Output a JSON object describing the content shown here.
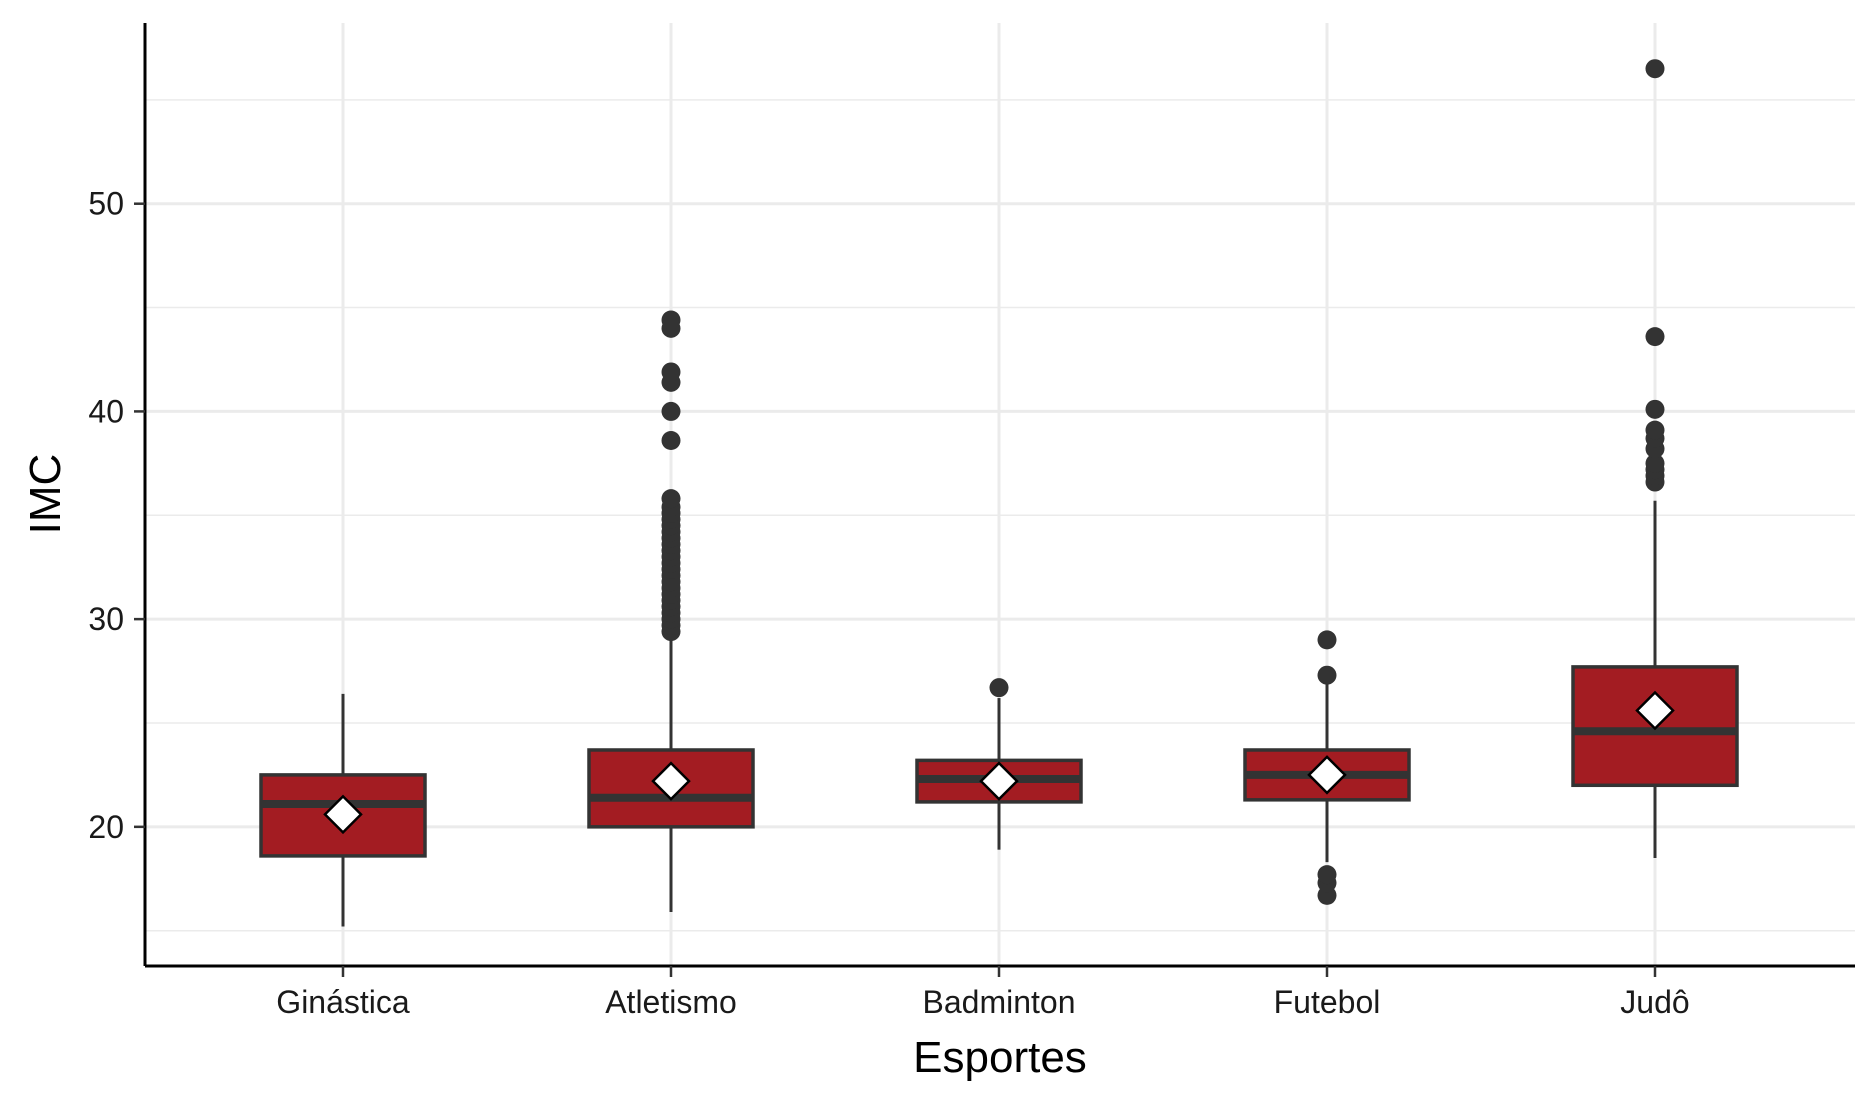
{
  "chart_data": {
    "type": "boxplot",
    "xlabel": "Esportes",
    "ylabel": "IMC",
    "ylim": [
      13.3,
      58.7
    ],
    "yticks": [
      20,
      30,
      40,
      50
    ],
    "grid": true,
    "legend": "none",
    "colors": {
      "box_fill": "#a31c22",
      "box_stroke": "#333333",
      "mean_marker": "#ffffff",
      "grid": "#ebebeb"
    },
    "categories": [
      "Ginástica",
      "Atletismo",
      "Badminton",
      "Futebol",
      "Judô"
    ],
    "boxes": [
      {
        "category": "Ginástica",
        "whisker_low": 15.2,
        "q1": 18.6,
        "median": 21.1,
        "q3": 22.5,
        "whisker_high": 26.4,
        "mean": 20.6,
        "outliers": []
      },
      {
        "category": "Atletismo",
        "whisker_low": 15.9,
        "q1": 20.0,
        "median": 21.4,
        "q3": 23.7,
        "whisker_high": 29.2,
        "mean": 22.2,
        "outliers": [
          29.4,
          29.7,
          30.0,
          30.3,
          30.6,
          30.9,
          31.2,
          31.5,
          31.8,
          32.1,
          32.4,
          32.7,
          33.0,
          33.3,
          33.6,
          33.9,
          34.2,
          34.5,
          34.8,
          35.1,
          35.4,
          35.8,
          38.6,
          40.0,
          41.4,
          41.9,
          44.0,
          44.4
        ]
      },
      {
        "category": "Badminton",
        "whisker_low": 18.9,
        "q1": 21.2,
        "median": 22.3,
        "q3": 23.2,
        "whisker_high": 26.2,
        "mean": 22.2,
        "outliers": [
          26.7
        ]
      },
      {
        "category": "Futebol",
        "whisker_low": 18.3,
        "q1": 21.3,
        "median": 22.5,
        "q3": 23.7,
        "whisker_high": 27.1,
        "mean": 22.5,
        "outliers": [
          16.7,
          17.3,
          17.7,
          27.3,
          29.0
        ]
      },
      {
        "category": "Judô",
        "whisker_low": 18.5,
        "q1": 22.0,
        "median": 24.6,
        "q3": 27.7,
        "whisker_high": 35.7,
        "mean": 25.6,
        "outliers": [
          36.6,
          36.9,
          37.2,
          37.5,
          38.2,
          38.7,
          39.1,
          40.1,
          43.6,
          56.5
        ]
      }
    ]
  }
}
